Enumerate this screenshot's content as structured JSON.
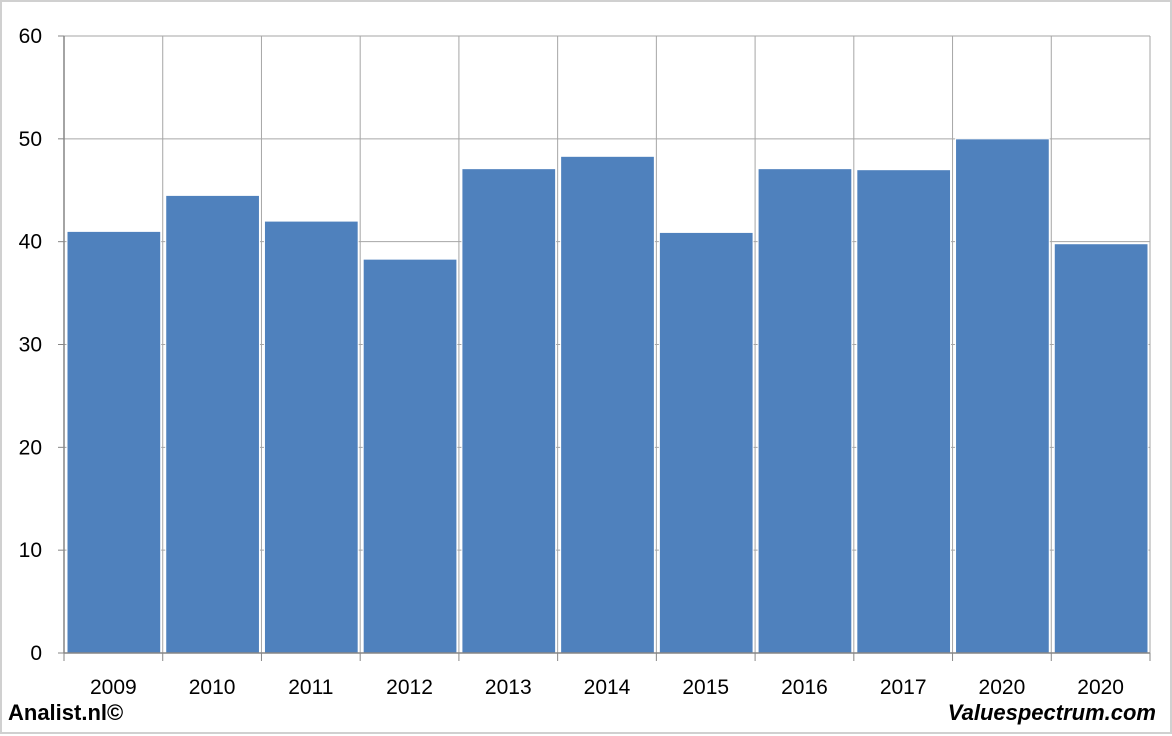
{
  "chart_data": {
    "type": "bar",
    "categories": [
      "2009",
      "2010",
      "2011",
      "2012",
      "2013",
      "2014",
      "2015",
      "2016",
      "2017",
      "2020",
      "2020"
    ],
    "values": [
      41.0,
      44.5,
      42.0,
      38.3,
      47.1,
      48.3,
      40.9,
      47.1,
      47.0,
      50.0,
      39.8
    ],
    "title": "",
    "xlabel": "",
    "ylabel": "",
    "ylim": [
      0,
      60
    ],
    "yticks": [
      "0",
      "10",
      "20",
      "30",
      "40",
      "50",
      "60"
    ],
    "grid": true,
    "bar_color": "#4f81bd",
    "grid_color": "#a6a6a6"
  },
  "footer": {
    "left": "Analist.nl©",
    "right": "Valuespectrum.com"
  }
}
